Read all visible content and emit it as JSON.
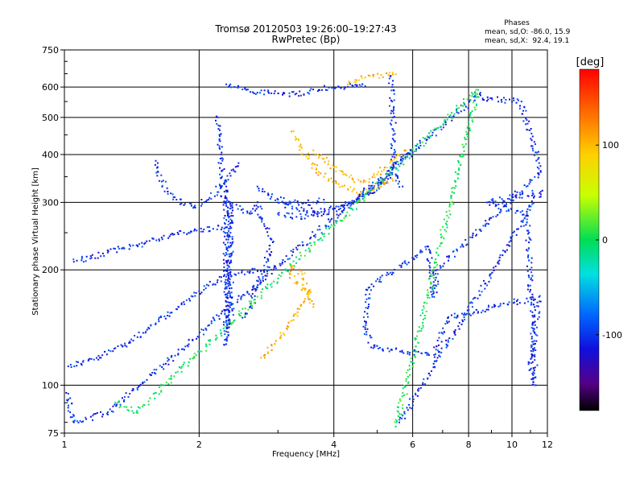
{
  "chart_data": {
    "type": "scatter",
    "title": "Tromsø 20120503 19:26:00–19:27:43",
    "subtitle": "RwPretec (Bp)",
    "xlabel": "Frequency [MHz]",
    "ylabel": "Stationary phase Virtual Height [km]",
    "x_scale": "log",
    "y_scale": "log",
    "xlim": [
      1,
      12
    ],
    "ylim": [
      75,
      750
    ],
    "x_ticks": [
      1,
      2,
      4,
      6,
      8,
      10,
      12
    ],
    "y_ticks": [
      75,
      100,
      200,
      300,
      400,
      500,
      600,
      750
    ],
    "grid": true,
    "phases_box": {
      "title": "Phases",
      "line1": "mean, sd,O: -86.0, 15.9",
      "line2": "mean, sd,X:  92.4, 19.1"
    },
    "colorbar": {
      "label": "[deg]",
      "range": [
        -180,
        180
      ],
      "ticks": [
        100,
        0,
        -100
      ]
    },
    "series": [
      {
        "phase_deg": -100,
        "points": [
          [
            1.02,
            112
          ],
          [
            1.1,
            115
          ],
          [
            1.2,
            118
          ],
          [
            1.3,
            125
          ],
          [
            1.4,
            130
          ],
          [
            1.5,
            137
          ],
          [
            1.6,
            145
          ],
          [
            1.7,
            152
          ],
          [
            1.8,
            160
          ],
          [
            1.9,
            168
          ],
          [
            2.0,
            176
          ],
          [
            2.1,
            182
          ],
          [
            2.2,
            188
          ],
          [
            2.3,
            192
          ],
          [
            2.45,
            196
          ],
          [
            2.6,
            198
          ],
          [
            2.75,
            199
          ],
          [
            2.9,
            200
          ]
        ]
      },
      {
        "phase_deg": -100,
        "points": [
          [
            1.05,
            210
          ],
          [
            1.15,
            215
          ],
          [
            1.25,
            222
          ],
          [
            1.35,
            228
          ],
          [
            1.45,
            232
          ],
          [
            1.55,
            238
          ],
          [
            1.65,
            243
          ],
          [
            1.75,
            247
          ],
          [
            1.85,
            250
          ],
          [
            1.95,
            253
          ],
          [
            2.05,
            255
          ],
          [
            2.15,
            256
          ],
          [
            2.25,
            258
          ]
        ]
      },
      {
        "phase_deg": -100,
        "points": [
          [
            1.6,
            385
          ],
          [
            1.62,
            360
          ],
          [
            1.65,
            340
          ],
          [
            1.7,
            320
          ],
          [
            1.78,
            305
          ],
          [
            1.85,
            295
          ],
          [
            1.95,
            292
          ],
          [
            2.1,
            305
          ],
          [
            2.3,
            340
          ],
          [
            2.45,
            380
          ]
        ]
      },
      {
        "phase_deg": -100,
        "points": [
          [
            2.3,
            330
          ],
          [
            2.3,
            300
          ],
          [
            2.3,
            270
          ],
          [
            2.3,
            240
          ],
          [
            2.3,
            210
          ],
          [
            2.3,
            185
          ],
          [
            2.3,
            165
          ],
          [
            2.3,
            150
          ],
          [
            2.3,
            138
          ],
          [
            2.3,
            128
          ],
          [
            2.35,
            300
          ],
          [
            2.35,
            250
          ],
          [
            2.35,
            200
          ],
          [
            2.35,
            170
          ],
          [
            2.35,
            145
          ]
        ]
      },
      {
        "phase_deg": -100,
        "points": [
          [
            2.2,
            500
          ],
          [
            2.22,
            450
          ],
          [
            2.24,
            400
          ],
          [
            2.25,
            350
          ],
          [
            2.27,
            300
          ],
          [
            2.6,
            280
          ],
          [
            2.7,
            300
          ],
          [
            2.8,
            260
          ],
          [
            2.9,
            240
          ],
          [
            2.8,
            200
          ],
          [
            2.7,
            180
          ],
          [
            2.6,
            160
          ],
          [
            2.5,
            150
          ]
        ]
      },
      {
        "phase_deg": -100,
        "points": [
          [
            2.3,
            610
          ],
          [
            2.4,
            600
          ],
          [
            2.55,
            590
          ],
          [
            2.7,
            580
          ],
          [
            2.9,
            578
          ],
          [
            3.1,
            577
          ],
          [
            3.3,
            577
          ],
          [
            3.5,
            580
          ],
          [
            3.7,
            590
          ],
          [
            3.9,
            598
          ],
          [
            4.1,
            600
          ],
          [
            4.3,
            601
          ],
          [
            4.5,
            602
          ],
          [
            4.7,
            603
          ]
        ]
      },
      {
        "phase_deg": -100,
        "points": [
          [
            5.35,
            640
          ],
          [
            5.4,
            600
          ],
          [
            5.4,
            550
          ],
          [
            5.42,
            500
          ],
          [
            5.43,
            450
          ],
          [
            5.45,
            400
          ],
          [
            5.45,
            370
          ],
          [
            5.5,
            355
          ],
          [
            5.6,
            340
          ],
          [
            5.7,
            330
          ]
        ]
      },
      {
        "phase_deg": -100,
        "points": [
          [
            3.0,
            280
          ],
          [
            3.3,
            275
          ],
          [
            3.6,
            277
          ],
          [
            3.9,
            283
          ],
          [
            4.2,
            292
          ],
          [
            4.5,
            305
          ],
          [
            4.8,
            320
          ],
          [
            5.1,
            340
          ],
          [
            5.4,
            365
          ],
          [
            5.7,
            390
          ],
          [
            6.0,
            405
          ]
        ]
      },
      {
        "phase_deg": -100,
        "points": [
          [
            3.0,
            300
          ],
          [
            3.3,
            290
          ],
          [
            3.6,
            285
          ],
          [
            3.9,
            287
          ],
          [
            4.2,
            295
          ],
          [
            4.5,
            305
          ],
          [
            4.8,
            318
          ],
          [
            5.1,
            335
          ],
          [
            5.4,
            355
          ]
        ]
      },
      {
        "phase_deg": -100,
        "points": [
          [
            2.7,
            330
          ],
          [
            2.8,
            320
          ],
          [
            2.9,
            310
          ],
          [
            3.0,
            305
          ],
          [
            3.2,
            300
          ],
          [
            3.4,
            298
          ],
          [
            3.6,
            300
          ],
          [
            3.8,
            305
          ]
        ]
      },
      {
        "phase_deg": 100,
        "points": [
          [
            3.25,
            460
          ],
          [
            3.35,
            420
          ],
          [
            3.5,
            390
          ],
          [
            3.7,
            360
          ],
          [
            3.9,
            345
          ],
          [
            4.1,
            335
          ],
          [
            4.3,
            325
          ],
          [
            4.5,
            318
          ],
          [
            4.8,
            320
          ],
          [
            5.1,
            330
          ],
          [
            5.4,
            345
          ]
        ]
      },
      {
        "phase_deg": 100,
        "points": [
          [
            3.6,
            410
          ],
          [
            3.8,
            390
          ],
          [
            4.0,
            370
          ],
          [
            4.2,
            355
          ],
          [
            4.4,
            345
          ],
          [
            4.6,
            340
          ],
          [
            4.8,
            345
          ],
          [
            5.0,
            355
          ],
          [
            5.2,
            370
          ],
          [
            5.4,
            385
          ],
          [
            5.6,
            400
          ],
          [
            5.8,
            410
          ]
        ]
      },
      {
        "phase_deg": 100,
        "points": [
          [
            4.3,
            610
          ],
          [
            4.5,
            625
          ],
          [
            4.7,
            635
          ],
          [
            4.9,
            640
          ],
          [
            5.1,
            645
          ],
          [
            5.3,
            645
          ],
          [
            5.5,
            648
          ]
        ]
      },
      {
        "phase_deg": 100,
        "points": [
          [
            2.75,
            118
          ],
          [
            2.85,
            122
          ],
          [
            2.95,
            128
          ],
          [
            3.05,
            135
          ],
          [
            3.15,
            140
          ],
          [
            3.25,
            148
          ],
          [
            3.35,
            158
          ],
          [
            3.45,
            168
          ],
          [
            3.55,
            175
          ],
          [
            3.3,
            185
          ],
          [
            3.2,
            195
          ],
          [
            3.25,
            205
          ],
          [
            3.4,
            195
          ],
          [
            3.5,
            170
          ],
          [
            3.6,
            160
          ]
        ]
      },
      {
        "phase_deg": -100,
        "points": [
          [
            1.02,
            95
          ],
          [
            1.03,
            85
          ],
          [
            1.05,
            80
          ],
          [
            1.25,
            85
          ],
          [
            1.4,
            95
          ],
          [
            8.5,
            580
          ],
          [
            8.6,
            560
          ],
          [
            10.5,
            550
          ],
          [
            10.6,
            520
          ],
          [
            11.5,
            380
          ],
          [
            11.6,
            360
          ],
          [
            6.8,
            200
          ],
          [
            6.7,
            170
          ],
          [
            6.5,
            230
          ],
          [
            4.8,
            180
          ],
          [
            4.7,
            140
          ],
          [
            4.9,
            125
          ],
          [
            6.7,
            120
          ],
          [
            7.2,
            150
          ],
          [
            11.5,
            170
          ],
          [
            11.0,
            110
          ],
          [
            11.3,
            100
          ],
          [
            10.8,
            280
          ],
          [
            8.8,
            300
          ],
          [
            11.6,
            320
          ],
          [
            5.6,
            80
          ]
        ]
      },
      {
        "phase_deg": 0,
        "points": [
          [
            1.3,
            90
          ],
          [
            1.45,
            85
          ],
          [
            8.4,
            590
          ],
          [
            5.5,
            78
          ]
        ]
      }
    ]
  }
}
